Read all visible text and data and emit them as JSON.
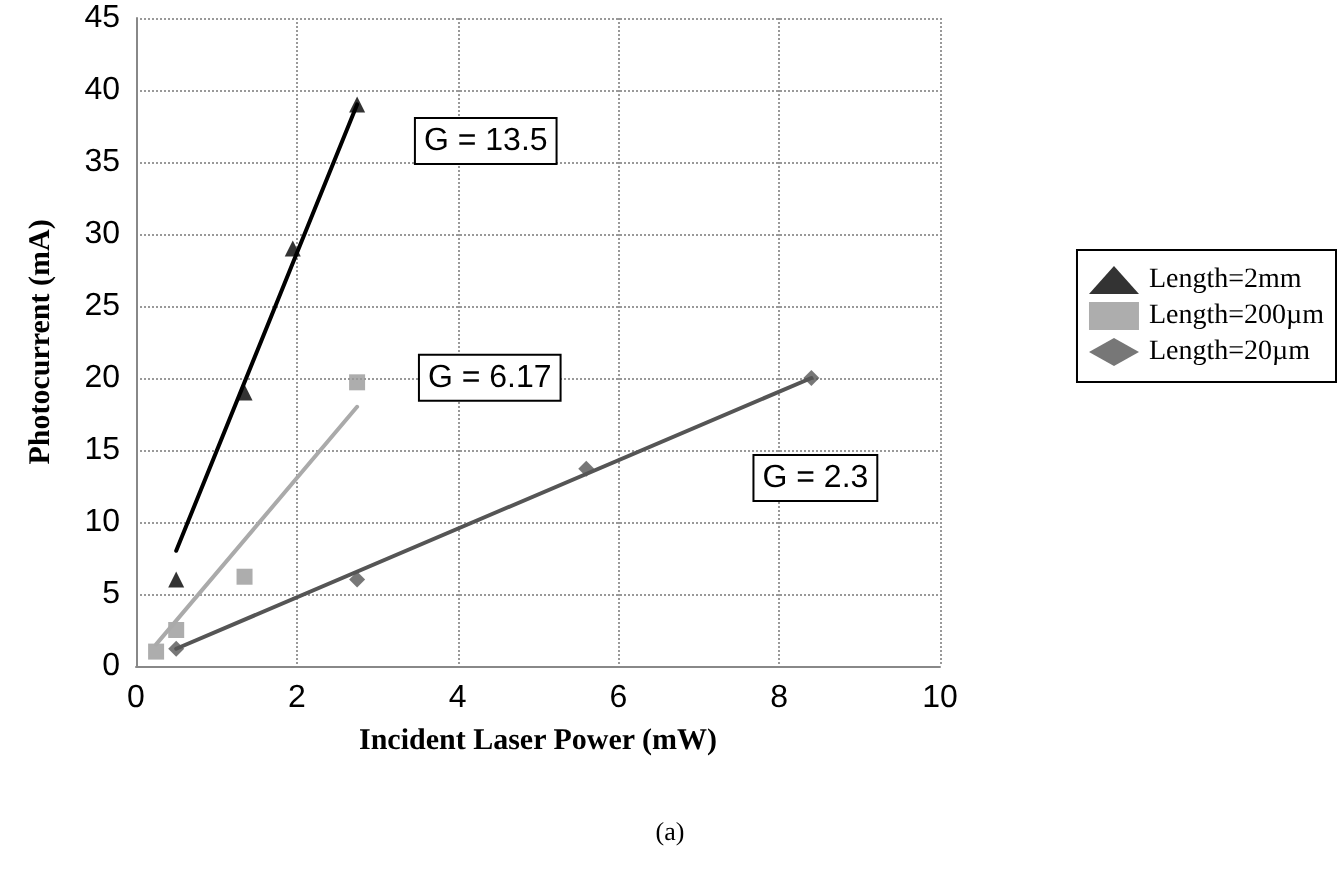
{
  "chart_data": {
    "type": "scatter",
    "xlabel": "Incident Laser Power (mW)",
    "ylabel": "Photocurrent (mA)",
    "xlim": [
      0,
      10
    ],
    "xticks": [
      0,
      2,
      4,
      6,
      8,
      10
    ],
    "ylim": [
      0,
      45
    ],
    "yticks": [
      0,
      5,
      10,
      15,
      20,
      25,
      30,
      35,
      40,
      45
    ],
    "grid": true,
    "legend": "right",
    "series": [
      {
        "name": "Length=2mm",
        "color": "#000000",
        "marker": "triangle",
        "x": [
          0.5,
          1.35,
          1.95,
          2.75
        ],
        "values": [
          6,
          19,
          29,
          39
        ]
      },
      {
        "name": "Length=200µm",
        "color": "#999999",
        "marker": "square",
        "x": [
          0.25,
          0.5,
          1.35,
          2.75
        ],
        "values": [
          1,
          2.5,
          6.2,
          19.7
        ]
      },
      {
        "name": "Length=20µm",
        "color": "#555555",
        "marker": "diamond",
        "x": [
          0.5,
          2.75,
          5.6,
          8.4
        ],
        "values": [
          1.2,
          6,
          13.7,
          20
        ]
      },
      {
        "type": "line",
        "color": "#000000",
        "line_style": "solid",
        "x": [
          0.5,
          2.75
        ],
        "values": [
          8,
          39
        ]
      },
      {
        "type": "line",
        "color": "#aaaaaa",
        "line_style": "solid",
        "x": [
          0.25,
          2.75
        ],
        "values": [
          1.5,
          18
        ]
      },
      {
        "type": "line",
        "color": "#555555",
        "line_style": "solid",
        "x": [
          0.5,
          8.4
        ],
        "values": [
          1.2,
          20
        ]
      }
    ],
    "annotations": [
      "G = 13.5",
      "G = 6.17",
      "G = 2.3",
      "(a)"
    ]
  }
}
